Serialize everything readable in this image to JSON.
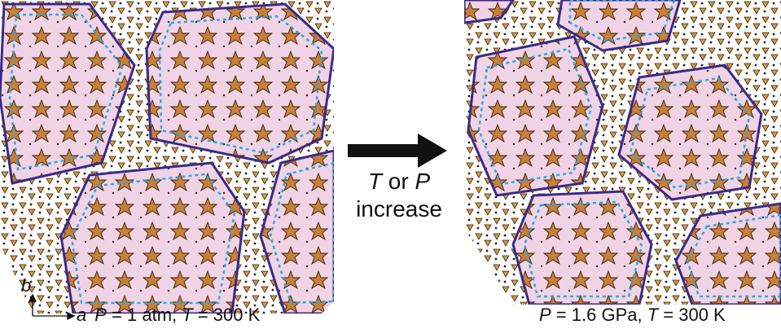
{
  "left_panel": {
    "caption_p_var": "P",
    "caption_p_eq": " = 1 atm, ",
    "caption_t_var": "T",
    "caption_t_eq": " = 300 K",
    "axis_a": "a",
    "axis_b": "b"
  },
  "transition": {
    "line1_var_t": "T",
    "line1_or": " or ",
    "line1_var_p": "P",
    "line2": "increase"
  },
  "right_panel": {
    "caption_p_var": "P",
    "caption_p_eq": " = 1.6 GPa, ",
    "caption_t_var": "T",
    "caption_t_eq": " = 300 K"
  },
  "colors": {
    "grain_fill": "#f0d4e6",
    "grain_border": "#3a2a88",
    "grain_dashed": "#2aa8e0",
    "tile_fill": "#c98a3e",
    "tile_stroke": "#3a1e08",
    "arrow": "#111111"
  }
}
